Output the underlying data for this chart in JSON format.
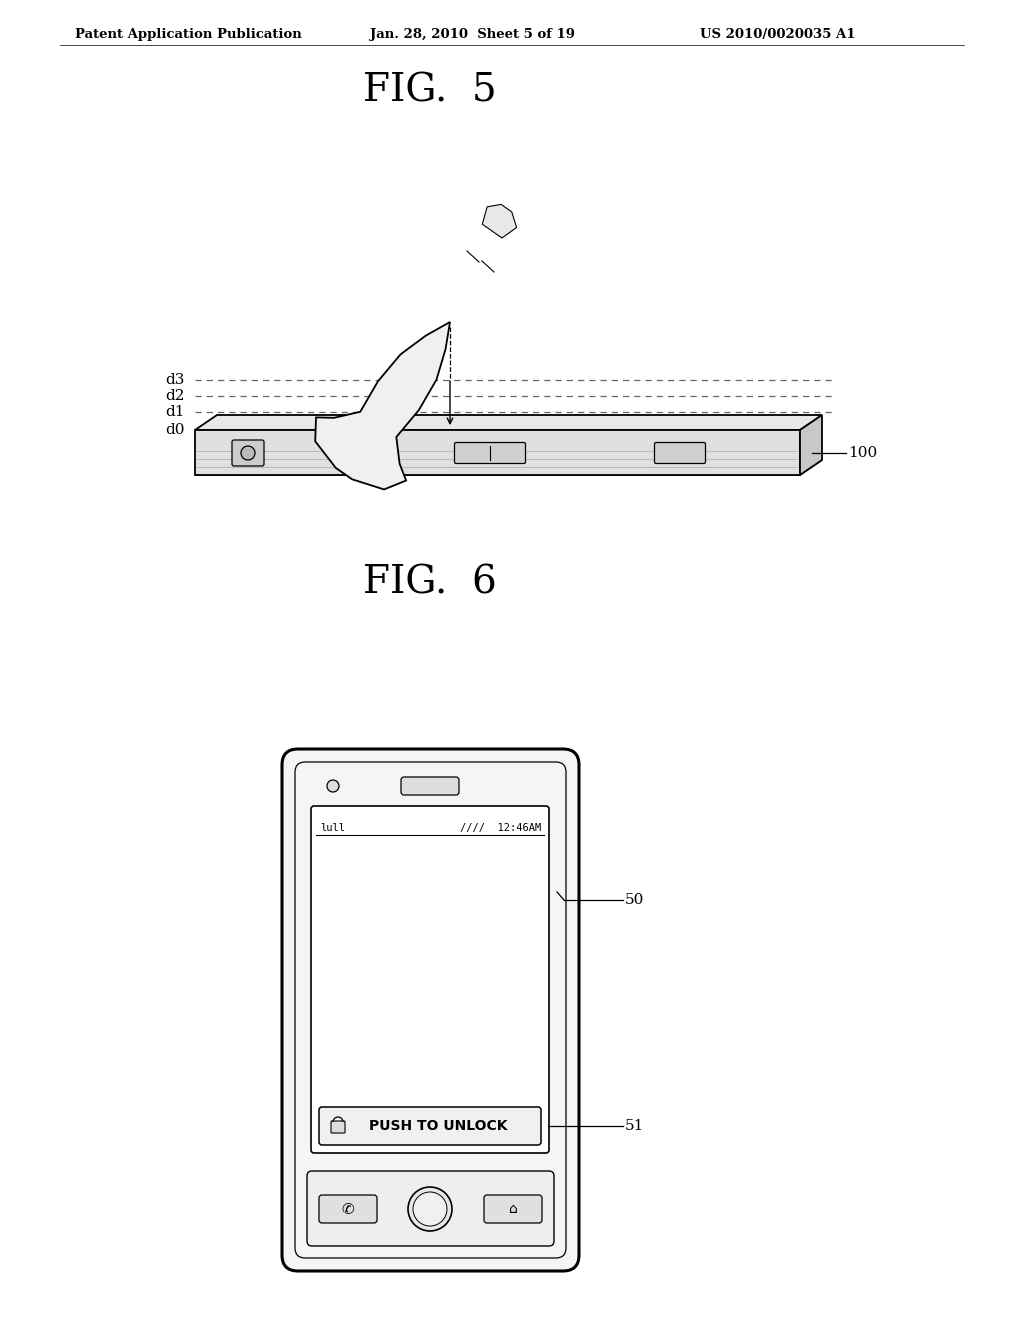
{
  "bg_color": "#ffffff",
  "header_left": "Patent Application Publication",
  "header_mid": "Jan. 28, 2010  Sheet 5 of 19",
  "header_right": "US 2010/0020035 A1",
  "fig5_title": "FIG.  5",
  "fig6_title": "FIG.  6",
  "label_d0": "d0",
  "label_d1": "d1",
  "label_d2": "d2",
  "label_d3": "d3",
  "label_100": "100",
  "label_50": "50",
  "label_51": "51",
  "push_to_unlock": "PUSH TO UNLOCK",
  "time_text": "12:46AM",
  "line_color": "#000000",
  "dashed_color": "#666666"
}
